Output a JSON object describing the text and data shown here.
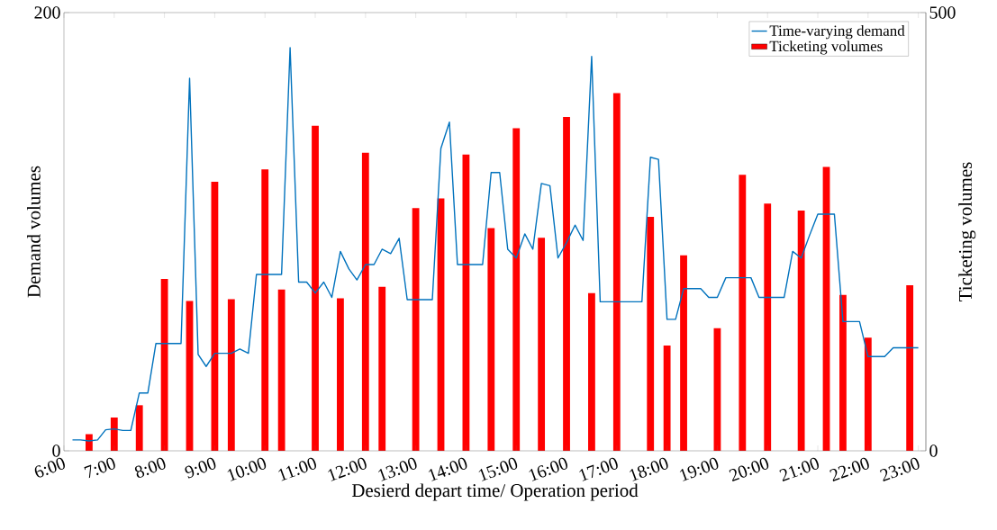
{
  "chart_data": {
    "type": "line",
    "xlabel": "Desierd depart time/ Operation period",
    "ylabel": "Demand volumes",
    "y2label": "Ticketing volumes",
    "legend": "top right",
    "xlim": [
      6,
      23.15
    ],
    "xticks": [
      {
        "value": 6,
        "label": "6:00"
      },
      {
        "value": 7,
        "label": "7:00"
      },
      {
        "value": 8,
        "label": "8:00"
      },
      {
        "value": 9,
        "label": "9:00"
      },
      {
        "value": 10,
        "label": "10:00"
      },
      {
        "value": 11,
        "label": "11:00"
      },
      {
        "value": 12,
        "label": "12:00"
      },
      {
        "value": 13,
        "label": "13:00"
      },
      {
        "value": 14,
        "label": "14:00"
      },
      {
        "value": 15,
        "label": "15:00"
      },
      {
        "value": 16,
        "label": "16:00"
      },
      {
        "value": 17,
        "label": "17:00"
      },
      {
        "value": 18,
        "label": "18:00"
      },
      {
        "value": 19,
        "label": "19:00"
      },
      {
        "value": 20,
        "label": "20:00"
      },
      {
        "value": 21,
        "label": "21:00"
      },
      {
        "value": 22,
        "label": "22:00"
      },
      {
        "value": 23,
        "label": "23:00"
      }
    ],
    "ylim": [
      0,
      200
    ],
    "yticks": [
      0,
      200
    ],
    "y2lim": [
      0,
      500
    ],
    "y2ticks": [
      0,
      500
    ],
    "series": [
      {
        "name": "Time-varying demand",
        "color": "#0072bd",
        "x": [
          6.17,
          6.33,
          6.5,
          6.67,
          6.83,
          7,
          7.17,
          7.33,
          7.5,
          7.67,
          7.83,
          8,
          8.17,
          8.33,
          8.5,
          8.67,
          8.83,
          9,
          9.17,
          9.33,
          9.5,
          9.67,
          9.83,
          10,
          10.17,
          10.33,
          10.5,
          10.67,
          10.83,
          11,
          11.17,
          11.33,
          11.5,
          11.67,
          11.83,
          12,
          12.17,
          12.33,
          12.5,
          12.67,
          12.83,
          13,
          13.17,
          13.33,
          13.5,
          13.67,
          13.83,
          14,
          14.17,
          14.33,
          14.5,
          14.67,
          14.83,
          15,
          15.17,
          15.33,
          15.5,
          15.67,
          15.83,
          16,
          16.17,
          16.33,
          16.5,
          16.67,
          16.83,
          17,
          17.17,
          17.33,
          17.5,
          17.67,
          17.83,
          18,
          18.17,
          18.33,
          18.5,
          18.67,
          18.83,
          19,
          19.17,
          19.33,
          19.5,
          19.67,
          19.83,
          20,
          20.17,
          20.33,
          20.5,
          20.67,
          20.83,
          21,
          21.17,
          21.33,
          21.5,
          21.67,
          21.83,
          22,
          22.17,
          22.33,
          22.5,
          22.67,
          22.83,
          23
        ],
        "values": [
          5,
          5,
          4.5,
          5,
          9.6,
          10,
          9.3,
          9.3,
          26.4,
          26.4,
          49,
          49,
          49,
          49,
          170,
          44,
          38.5,
          44.5,
          44.5,
          44.5,
          46.5,
          44.5,
          80.5,
          80.5,
          80.5,
          80.5,
          184,
          77,
          77,
          72,
          77,
          70,
          91,
          83,
          78,
          85,
          85,
          92,
          90,
          97,
          69,
          69,
          69,
          69,
          138,
          150,
          85,
          85,
          85,
          85,
          127,
          127,
          92,
          88,
          99,
          92,
          122,
          121,
          88,
          95,
          103,
          96,
          180,
          68,
          68,
          68,
          68,
          68,
          68,
          134,
          133,
          60,
          60,
          74,
          74,
          74,
          70,
          70,
          79,
          79,
          79,
          79,
          70,
          70,
          70,
          70,
          91,
          88,
          98,
          108,
          108,
          108,
          59,
          59,
          59,
          43,
          43,
          43,
          47,
          47,
          47,
          47
        ]
      },
      {
        "name": "Ticketing volumes",
        "type": "bar",
        "axis": "y2",
        "color": "#ff0000",
        "x": [
          6.5,
          7,
          7.5,
          8,
          8.5,
          9,
          9.33,
          10,
          10.33,
          11,
          11.5,
          12,
          12.33,
          13,
          13.5,
          14,
          14.5,
          15,
          15.5,
          16,
          16.5,
          17,
          17.67,
          18,
          18.33,
          19,
          19.5,
          20,
          20.67,
          21.17,
          21.5,
          22,
          22.83
        ],
        "values": [
          19,
          38,
          52,
          196,
          171,
          307,
          173,
          321,
          184,
          371,
          174,
          340,
          187,
          277,
          288,
          338,
          254,
          368,
          243,
          381,
          180,
          408,
          267,
          120,
          223,
          140,
          315,
          282,
          274,
          324,
          178,
          129,
          189
        ]
      }
    ]
  }
}
